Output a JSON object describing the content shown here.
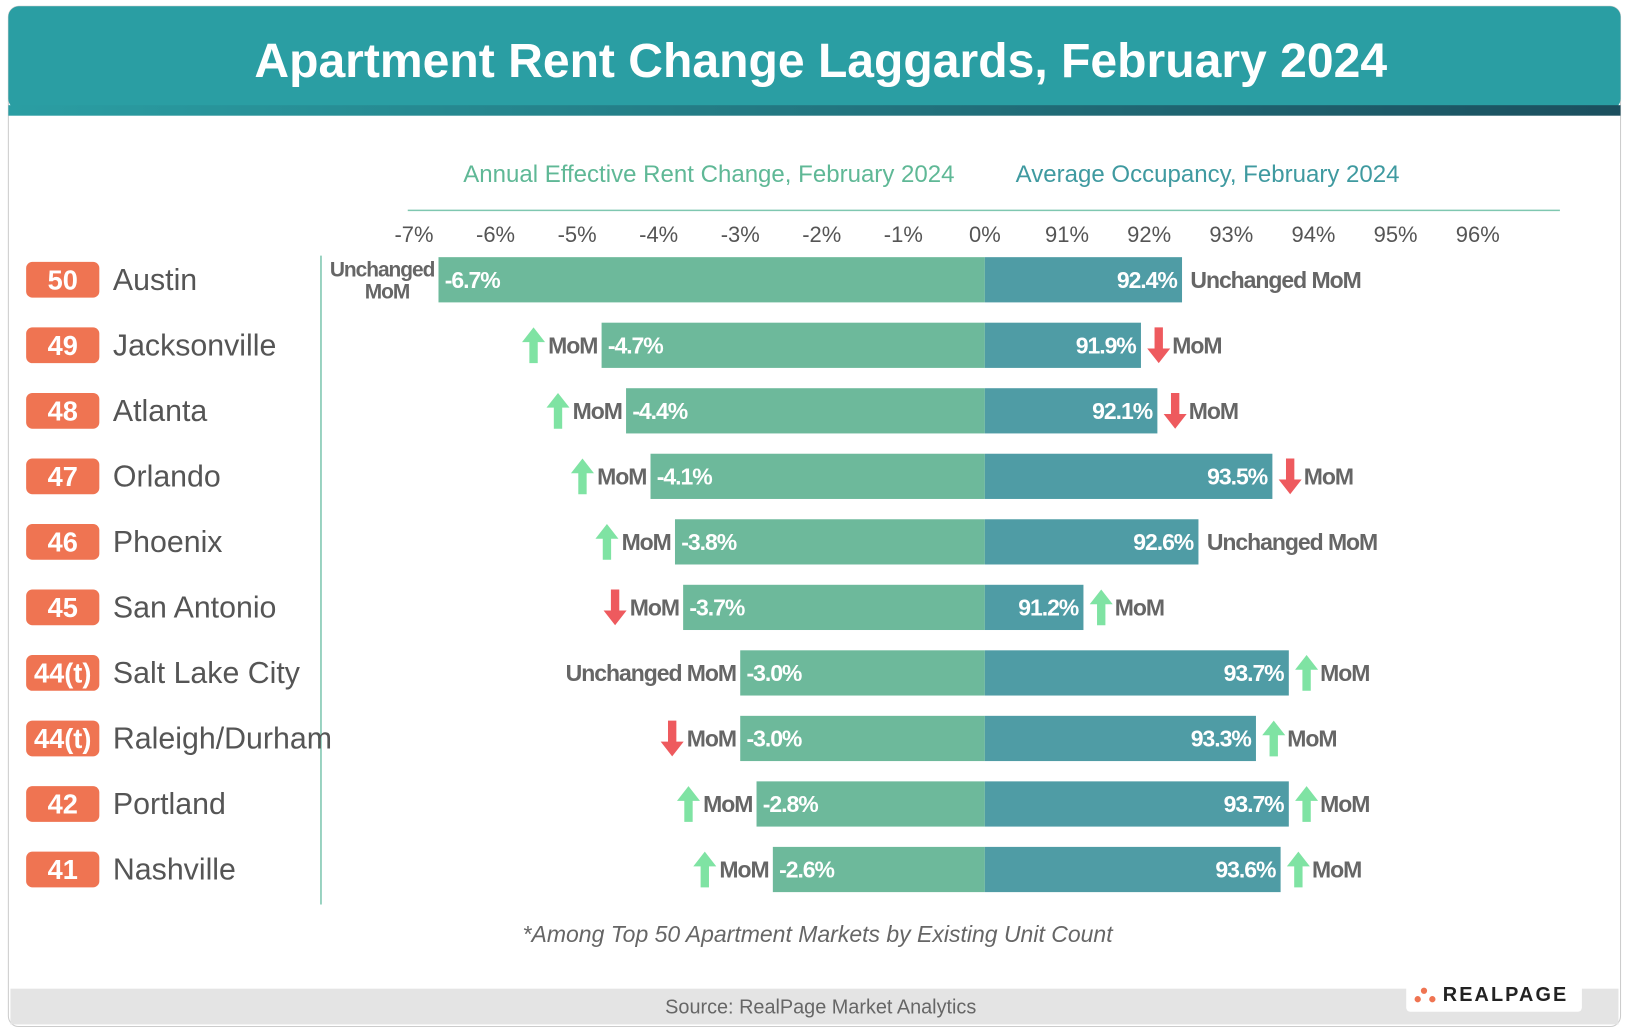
{
  "header": {
    "title": "Apartment Rent Change Laggards, February 2024"
  },
  "chart_data": {
    "type": "diverging-bar",
    "ranks": [
      "50",
      "49",
      "48",
      "47",
      "46",
      "45",
      "44(t)",
      "44(t)",
      "42",
      "41"
    ],
    "categories": [
      "Austin",
      "Jacksonville",
      "Atlanta",
      "Orlando",
      "Phoenix",
      "San Antonio",
      "Salt Lake City",
      "Raleigh/Durham",
      "Portland",
      "Nashville"
    ],
    "trend_colors": {
      "up": "#7fe3a3",
      "down": "#ee5a5e"
    },
    "rent": {
      "title": "Annual Effective Rent Change, February 2024",
      "color": "#6db99b",
      "xlim": [
        -7,
        0
      ],
      "xticks": [
        {
          "value": -7,
          "label": "-7%"
        },
        {
          "value": -6,
          "label": "-6%"
        },
        {
          "value": -5,
          "label": "-5%"
        },
        {
          "value": -4,
          "label": "-4%"
        },
        {
          "value": -3,
          "label": "-3%"
        },
        {
          "value": -2,
          "label": "-2%"
        },
        {
          "value": -1,
          "label": "-1%"
        },
        {
          "value": 0,
          "label": "0%"
        }
      ],
      "values": [
        -6.7,
        -4.7,
        -4.4,
        -4.1,
        -3.8,
        -3.7,
        -3.0,
        -3.0,
        -2.8,
        -2.6
      ],
      "value_labels": [
        "-6.7%",
        "-4.7%",
        "-4.4%",
        "-4.1%",
        "-3.8%",
        "-3.7%",
        "-3.0%",
        "-3.0%",
        "-2.8%",
        "-2.6%"
      ],
      "mom": [
        {
          "trend": "unchanged",
          "label": "Unchanged MoM"
        },
        {
          "trend": "up",
          "label": "MoM"
        },
        {
          "trend": "up",
          "label": "MoM"
        },
        {
          "trend": "up",
          "label": "MoM"
        },
        {
          "trend": "up",
          "label": "MoM"
        },
        {
          "trend": "down",
          "label": "MoM"
        },
        {
          "trend": "unchanged",
          "label": "Unchanged MoM"
        },
        {
          "trend": "down",
          "label": "MoM"
        },
        {
          "trend": "up",
          "label": "MoM"
        },
        {
          "trend": "up",
          "label": "MoM"
        }
      ]
    },
    "occupancy": {
      "title": "Average Occupancy, February 2024",
      "color": "#4f9ca5",
      "xlim": [
        90,
        97
      ],
      "xticks": [
        {
          "value": 91,
          "label": "91%"
        },
        {
          "value": 92,
          "label": "92%"
        },
        {
          "value": 93,
          "label": "93%"
        },
        {
          "value": 94,
          "label": "94%"
        },
        {
          "value": 95,
          "label": "95%"
        },
        {
          "value": 96,
          "label": "96%"
        }
      ],
      "values": [
        92.4,
        91.9,
        92.1,
        93.5,
        92.6,
        91.2,
        93.7,
        93.3,
        93.7,
        93.6
      ],
      "value_labels": [
        "92.4%",
        "91.9%",
        "92.1%",
        "93.5%",
        "92.6%",
        "91.2%",
        "93.7%",
        "93.3%",
        "93.7%",
        "93.6%"
      ],
      "mom": [
        {
          "trend": "unchanged",
          "label": "Unchanged MoM"
        },
        {
          "trend": "down",
          "label": "MoM"
        },
        {
          "trend": "down",
          "label": "MoM"
        },
        {
          "trend": "down",
          "label": "MoM"
        },
        {
          "trend": "unchanged",
          "label": "Unchanged MoM"
        },
        {
          "trend": "up",
          "label": "MoM"
        },
        {
          "trend": "up",
          "label": "MoM"
        },
        {
          "trend": "up",
          "label": "MoM"
        },
        {
          "trend": "up",
          "label": "MoM"
        },
        {
          "trend": "up",
          "label": "MoM"
        }
      ]
    },
    "note": "*Among Top 50 Apartment Markets by Existing Unit Count"
  },
  "footer": {
    "source": "Source: RealPage Market Analytics",
    "logo": "REALPAGE"
  }
}
